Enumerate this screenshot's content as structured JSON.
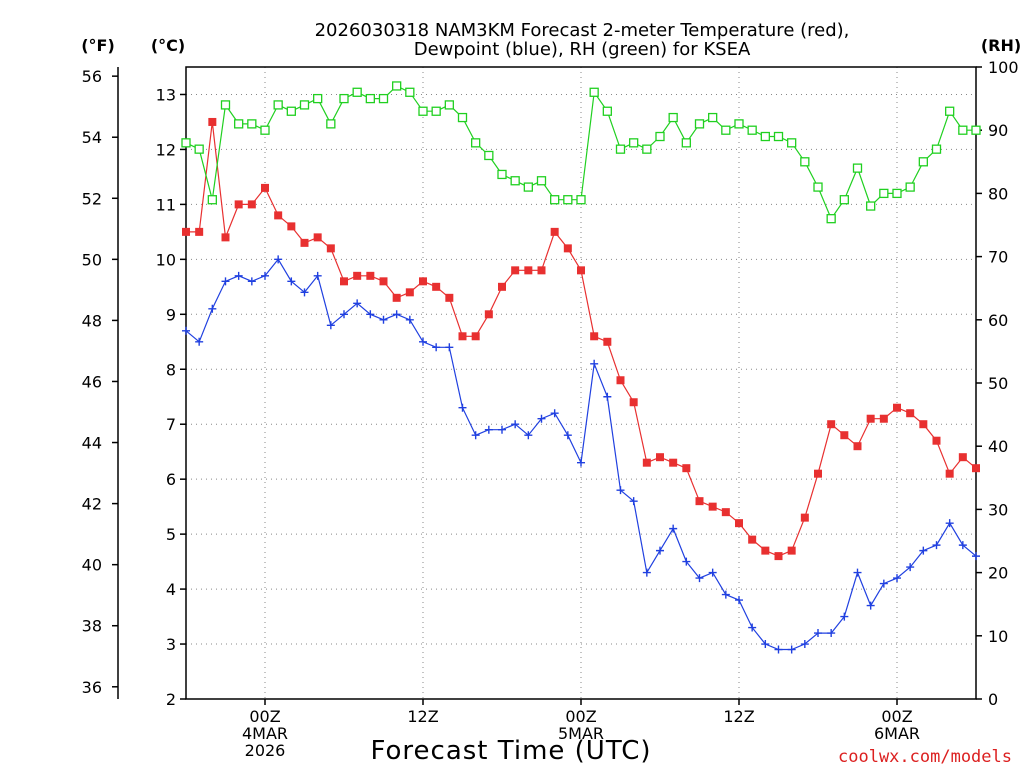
{
  "chart_data": {
    "type": "line",
    "title_line1": "2026030318 NAM3KM Forecast 2-meter Temperature (red),",
    "title_line2": "Dewpoint (blue), RH (green) for KSEA",
    "xlabel": "Forecast Time (UTC)",
    "credit": "coolwx.com/models",
    "units": {
      "fahrenheit": "(°F)",
      "celsius": "(°C)",
      "rh": "(RH)"
    },
    "x_forecast_hours": [
      0,
      60
    ],
    "x_ticks": [
      {
        "hour": 6,
        "lines": [
          "00Z",
          "4MAR",
          "2026"
        ]
      },
      {
        "hour": 18,
        "lines": [
          "12Z"
        ]
      },
      {
        "hour": 30,
        "lines": [
          "00Z",
          "5MAR"
        ]
      },
      {
        "hour": 42,
        "lines": [
          "12Z"
        ]
      },
      {
        "hour": 54,
        "lines": [
          "00Z",
          "6MAR"
        ]
      }
    ],
    "fahrenheit_axis": {
      "range": [
        35.6,
        56.3
      ],
      "ticks": [
        "36",
        "38",
        "40",
        "42",
        "44",
        "46",
        "48",
        "50",
        "52",
        "54",
        "56"
      ]
    },
    "celsius_axis": {
      "range": [
        2,
        13.5
      ],
      "ticks": [
        "2",
        "3",
        "4",
        "5",
        "6",
        "7",
        "8",
        "9",
        "10",
        "11",
        "12",
        "13"
      ]
    },
    "rh_axis": {
      "range": [
        0,
        100
      ],
      "ticks": [
        "0",
        "10",
        "20",
        "30",
        "40",
        "50",
        "60",
        "70",
        "80",
        "90",
        "100"
      ]
    },
    "colors": {
      "temperature": "#e83030",
      "dewpoint": "#2040e0",
      "rh": "#20d020",
      "grid": "#888888"
    },
    "series": [
      {
        "name": "Temperature (°C)",
        "axis": "celsius",
        "marker": "filled-square",
        "values": [
          10.5,
          10.5,
          12.5,
          10.4,
          11.0,
          11.0,
          11.3,
          10.8,
          10.6,
          10.3,
          10.4,
          10.2,
          9.6,
          9.7,
          9.7,
          9.6,
          9.3,
          9.4,
          9.6,
          9.5,
          9.3,
          8.6,
          8.6,
          9.0,
          9.5,
          9.8,
          9.8,
          9.8,
          10.5,
          10.2,
          9.8,
          8.6,
          8.5,
          7.8,
          7.4,
          6.3,
          6.4,
          6.3,
          6.2,
          5.6,
          5.5,
          5.4,
          5.2,
          4.9,
          4.7,
          4.6,
          4.7,
          5.3,
          6.1,
          7.0,
          6.8,
          6.6,
          7.1,
          7.1,
          7.3,
          7.2,
          7.0,
          6.7,
          6.1,
          6.4,
          6.2
        ]
      },
      {
        "name": "Dewpoint (°C)",
        "axis": "celsius",
        "marker": "plus",
        "values": [
          8.7,
          8.5,
          9.1,
          9.6,
          9.7,
          9.6,
          9.7,
          10.0,
          9.6,
          9.4,
          9.7,
          8.8,
          9.0,
          9.2,
          9.0,
          8.9,
          9.0,
          8.9,
          8.5,
          8.4,
          8.4,
          7.3,
          6.8,
          6.9,
          6.9,
          7.0,
          6.8,
          7.1,
          7.2,
          6.8,
          6.3,
          8.1,
          7.5,
          5.8,
          5.6,
          4.3,
          4.7,
          5.1,
          4.5,
          4.2,
          4.3,
          3.9,
          3.8,
          3.3,
          3.0,
          2.9,
          2.9,
          3.0,
          3.2,
          3.2,
          3.5,
          4.3,
          3.7,
          4.1,
          4.2,
          4.4,
          4.7,
          4.8,
          5.2,
          4.8,
          4.6
        ]
      },
      {
        "name": "RH (%)",
        "axis": "rh",
        "marker": "open-square",
        "values": [
          88,
          87,
          79,
          94,
          91,
          91,
          90,
          94,
          93,
          94,
          95,
          91,
          95,
          96,
          95,
          95,
          97,
          96,
          93,
          93,
          94,
          92,
          88,
          86,
          83,
          82,
          81,
          82,
          79,
          79,
          79,
          96,
          93,
          87,
          88,
          87,
          89,
          92,
          88,
          91,
          92,
          90,
          91,
          90,
          89,
          89,
          88,
          85,
          81,
          76,
          79,
          84,
          78,
          80,
          80,
          81,
          85,
          87,
          93,
          90,
          90
        ]
      }
    ]
  }
}
